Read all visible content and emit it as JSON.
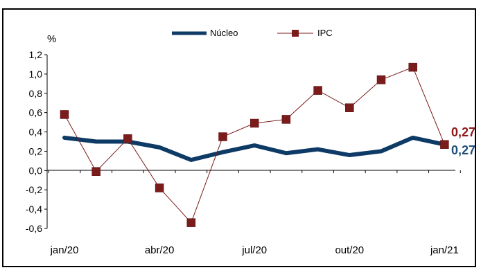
{
  "chart_data": {
    "type": "line",
    "ylabel": "%",
    "ylim": [
      -0.6,
      1.2
    ],
    "yticks": [
      "1,2",
      "1,0",
      "0,8",
      "0,6",
      "0,4",
      "0,2",
      "0,0",
      "-0,2",
      "-0,4",
      "-0,6"
    ],
    "x": [
      "jan/20",
      "fev/20",
      "mar/20",
      "abr/20",
      "mai/20",
      "jun/20",
      "jul/20",
      "ago/20",
      "set/20",
      "out/20",
      "nov/20",
      "dez/20",
      "jan/21"
    ],
    "x_tick_labels": [
      "jan/20",
      "abr/20",
      "jul/20",
      "out/20",
      "jan/21"
    ],
    "legend_position": "top",
    "series": [
      {
        "name": "Núcleo",
        "color": "#0e3a66",
        "values": [
          0.34,
          0.3,
          0.3,
          0.24,
          0.11,
          0.19,
          0.26,
          0.18,
          0.22,
          0.16,
          0.2,
          0.34,
          0.27
        ]
      },
      {
        "name": "IPC",
        "color": "#7a1c1c",
        "values": [
          0.58,
          -0.01,
          0.33,
          -0.18,
          -0.54,
          0.35,
          0.49,
          0.53,
          0.83,
          0.65,
          0.94,
          1.07,
          0.27
        ]
      }
    ],
    "end_labels": [
      {
        "series": "IPC",
        "text": "0,27",
        "color": "#8b1a1a"
      },
      {
        "series": "Núcleo",
        "text": "0,27",
        "color": "#1f4e79"
      }
    ]
  }
}
